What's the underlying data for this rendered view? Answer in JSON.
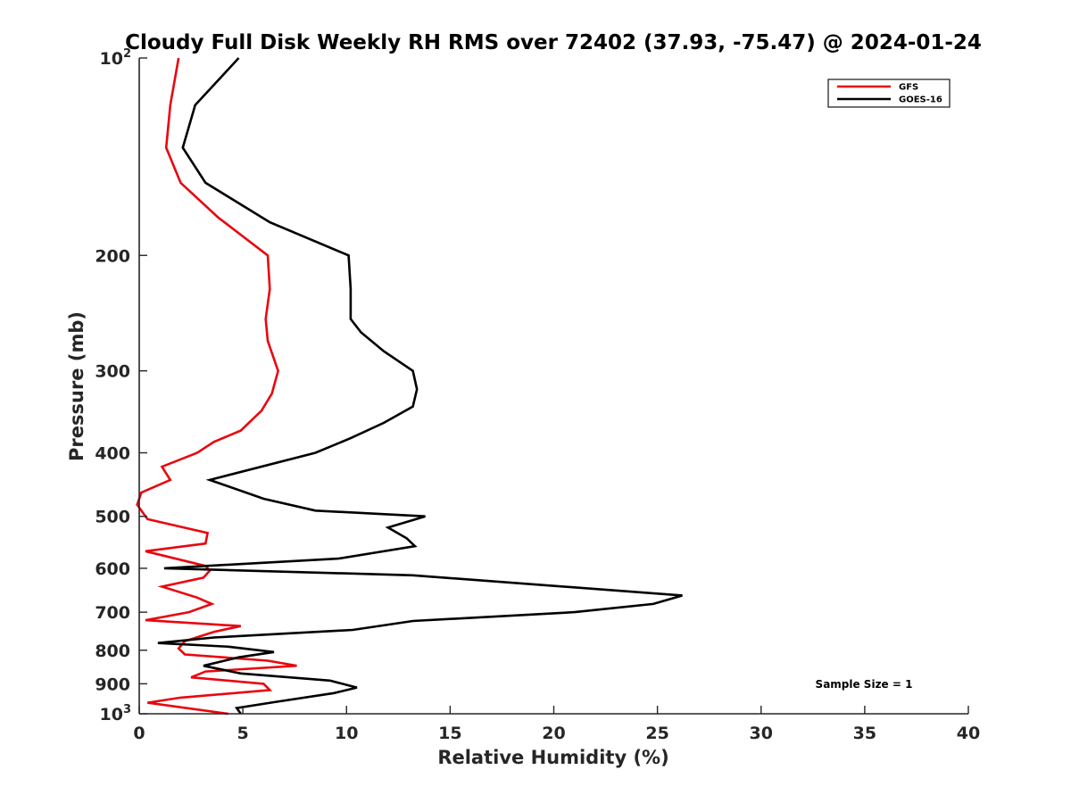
{
  "chart_data": {
    "type": "line",
    "title": "Cloudy Full Disk Weekly RH RMS over 72402 (37.93, -75.47) @ 2024-01-24",
    "xlabel": "Relative Humidity (%)",
    "ylabel": "Pressure (mb)",
    "xlim": [
      0,
      40
    ],
    "ylim": [
      100,
      1000
    ],
    "y_scale": "log",
    "y_reversed": true,
    "xticks": [
      0,
      5,
      10,
      15,
      20,
      25,
      30,
      35,
      40
    ],
    "yticks": [
      {
        "value": 100,
        "label": "10",
        "sup": "2"
      },
      {
        "value": 200,
        "label": "200",
        "sup": ""
      },
      {
        "value": 300,
        "label": "300",
        "sup": ""
      },
      {
        "value": 400,
        "label": "400",
        "sup": ""
      },
      {
        "value": 500,
        "label": "500",
        "sup": ""
      },
      {
        "value": 600,
        "label": "600",
        "sup": ""
      },
      {
        "value": 700,
        "label": "700",
        "sup": ""
      },
      {
        "value": 800,
        "label": "800",
        "sup": ""
      },
      {
        "value": 900,
        "label": "900",
        "sup": ""
      },
      {
        "value": 1000,
        "label": "10",
        "sup": "3"
      }
    ],
    "legend_position": "top-right",
    "annotation": "Sample Size = 1",
    "series": [
      {
        "name": "GFS",
        "color": "#e8070f",
        "points": [
          [
            1.9,
            100
          ],
          [
            1.5,
            118
          ],
          [
            1.3,
            137
          ],
          [
            2.0,
            155
          ],
          [
            3.8,
            175
          ],
          [
            6.2,
            200
          ],
          [
            6.3,
            225
          ],
          [
            6.1,
            250
          ],
          [
            6.2,
            270
          ],
          [
            6.7,
            300
          ],
          [
            6.4,
            325
          ],
          [
            5.9,
            345
          ],
          [
            4.9,
            370
          ],
          [
            3.6,
            385
          ],
          [
            2.8,
            400
          ],
          [
            1.1,
            420
          ],
          [
            1.5,
            440
          ],
          [
            0.1,
            460
          ],
          [
            -0.1,
            480
          ],
          [
            0.4,
            505
          ],
          [
            3.3,
            530
          ],
          [
            3.2,
            550
          ],
          [
            0.3,
            565
          ],
          [
            3.2,
            595
          ],
          [
            3.4,
            605
          ],
          [
            3.1,
            620
          ],
          [
            1.1,
            640
          ],
          [
            2.8,
            665
          ],
          [
            3.5,
            680
          ],
          [
            2.4,
            700
          ],
          [
            0.3,
            720
          ],
          [
            4.9,
            735
          ],
          [
            3.6,
            750
          ],
          [
            2.2,
            775
          ],
          [
            1.9,
            795
          ],
          [
            2.2,
            812
          ],
          [
            6.2,
            830
          ],
          [
            7.6,
            845
          ],
          [
            3.2,
            862
          ],
          [
            2.5,
            880
          ],
          [
            6.0,
            900
          ],
          [
            6.3,
            920
          ],
          [
            2.0,
            945
          ],
          [
            0.4,
            962
          ],
          [
            4.3,
            1000
          ]
        ]
      },
      {
        "name": "GOES-16",
        "color": "#000000",
        "points": [
          [
            4.8,
            100
          ],
          [
            2.7,
            118
          ],
          [
            2.1,
            137
          ],
          [
            3.2,
            155
          ],
          [
            6.3,
            178
          ],
          [
            10.1,
            200
          ],
          [
            10.2,
            225
          ],
          [
            10.2,
            250
          ],
          [
            10.7,
            262
          ],
          [
            11.8,
            280
          ],
          [
            13.2,
            300
          ],
          [
            13.4,
            320
          ],
          [
            13.2,
            340
          ],
          [
            11.8,
            360
          ],
          [
            10.2,
            380
          ],
          [
            8.5,
            400
          ],
          [
            3.4,
            440
          ],
          [
            6.0,
            470
          ],
          [
            8.5,
            490
          ],
          [
            13.8,
            500
          ],
          [
            12.0,
            520
          ],
          [
            12.9,
            540
          ],
          [
            13.3,
            555
          ],
          [
            9.6,
            580
          ],
          [
            1.2,
            600
          ],
          [
            13.2,
            615
          ],
          [
            26.2,
            660
          ],
          [
            24.8,
            680
          ],
          [
            21.0,
            700
          ],
          [
            13.2,
            722
          ],
          [
            10.3,
            745
          ],
          [
            3.6,
            765
          ],
          [
            0.9,
            780
          ],
          [
            4.3,
            790
          ],
          [
            6.5,
            805
          ],
          [
            4.8,
            820
          ],
          [
            3.1,
            845
          ],
          [
            4.9,
            868
          ],
          [
            9.2,
            890
          ],
          [
            10.5,
            912
          ],
          [
            9.4,
            930
          ],
          [
            6.5,
            960
          ],
          [
            4.7,
            980
          ],
          [
            4.9,
            1000
          ]
        ]
      }
    ]
  }
}
